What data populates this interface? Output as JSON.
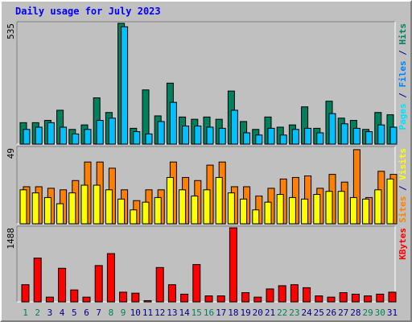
{
  "title": "Daily usage for July 2023",
  "colors": {
    "hits": "#00805c",
    "files": "#00c0ff",
    "pages": "#00e0ff",
    "visits": "#ffff00",
    "sites": "#ff8000",
    "kbytes": "#ff0000",
    "weekend_label": "#00805c",
    "weekday_label": "#000080"
  },
  "chart_data": [
    {
      "type": "bar",
      "panel": "hits-files-pages",
      "ymax_label": "535",
      "ylim": [
        0,
        535
      ],
      "legend": [
        {
          "text": "Pages",
          "color": "#00e0ff"
        },
        {
          "text": " / ",
          "color": "#000080"
        },
        {
          "text": "Files",
          "color": "#0080ff"
        },
        {
          "text": " / ",
          "color": "#000080"
        },
        {
          "text": "Hits",
          "color": "#00805c"
        }
      ],
      "categories": [
        "1",
        "2",
        "3",
        "4",
        "5",
        "6",
        "7",
        "8",
        "9",
        "10",
        "11",
        "12",
        "13",
        "14",
        "15",
        "16",
        "17",
        "18",
        "19",
        "20",
        "21",
        "22",
        "23",
        "24",
        "25",
        "26",
        "27",
        "28",
        "29",
        "30",
        "31"
      ],
      "series": [
        {
          "name": "Hits",
          "color": "#00805c",
          "values": [
            95,
            95,
            105,
            150,
            65,
            85,
            205,
            140,
            535,
            70,
            240,
            125,
            270,
            120,
            110,
            120,
            110,
            235,
            100,
            65,
            120,
            75,
            85,
            165,
            70,
            190,
            115,
            105,
            65,
            140,
            130
          ]
        },
        {
          "name": "Files",
          "color": "#00c0ff",
          "values": [
            65,
            75,
            95,
            75,
            45,
            65,
            105,
            115,
            520,
            55,
            45,
            100,
            185,
            80,
            80,
            75,
            70,
            150,
            50,
            40,
            70,
            40,
            65,
            70,
            50,
            135,
            90,
            70,
            55,
            85,
            75
          ]
        }
      ]
    },
    {
      "type": "bar",
      "panel": "visits-sites",
      "ymax_label": "49",
      "ylim": [
        0,
        49
      ],
      "legend": [
        {
          "text": "Sites",
          "color": "#ff8000"
        },
        {
          "text": " / ",
          "color": "#000080"
        },
        {
          "text": "Visits",
          "color": "#ffff00"
        }
      ],
      "categories": [
        "1",
        "2",
        "3",
        "4",
        "5",
        "6",
        "7",
        "8",
        "9",
        "10",
        "11",
        "12",
        "13",
        "14",
        "15",
        "16",
        "17",
        "18",
        "19",
        "20",
        "21",
        "22",
        "23",
        "24",
        "25",
        "26",
        "27",
        "28",
        "29",
        "30",
        "31"
      ],
      "series": [
        {
          "name": "Visits",
          "color": "#ffff00",
          "values": [
            22,
            20,
            17,
            13,
            20,
            25,
            25,
            22,
            16,
            9,
            14,
            17,
            30,
            22,
            18,
            22,
            30,
            20,
            16,
            9,
            14,
            19,
            17,
            16,
            19,
            21,
            21,
            17,
            16,
            22,
            29
          ]
        },
        {
          "name": "Sites",
          "color": "#ff8000",
          "values": [
            24,
            24,
            23,
            22,
            28,
            40,
            40,
            36,
            22,
            15,
            22,
            22,
            40,
            30,
            28,
            38,
            40,
            24,
            24,
            18,
            23,
            29,
            30,
            31,
            23,
            32,
            27,
            48,
            17,
            34,
            32
          ]
        }
      ]
    },
    {
      "type": "bar",
      "panel": "kbytes",
      "ymax_label": "1488",
      "ylim": [
        0,
        1488
      ],
      "legend": [
        {
          "text": "KBytes",
          "color": "#ff0000"
        }
      ],
      "categories": [
        "1",
        "2",
        "3",
        "4",
        "5",
        "6",
        "7",
        "8",
        "9",
        "10",
        "11",
        "12",
        "13",
        "14",
        "15",
        "16",
        "17",
        "18",
        "19",
        "20",
        "21",
        "22",
        "23",
        "24",
        "25",
        "26",
        "27",
        "28",
        "29",
        "30",
        "31"
      ],
      "series": [
        {
          "name": "KBytes",
          "color": "#ff0000",
          "values": [
            345,
            880,
            95,
            675,
            240,
            95,
            730,
            970,
            195,
            175,
            25,
            690,
            345,
            155,
            750,
            120,
            120,
            1488,
            185,
            95,
            260,
            325,
            345,
            285,
            120,
            95,
            185,
            155,
            120,
            155,
            195
          ]
        }
      ]
    }
  ],
  "days": [
    {
      "label": "1",
      "weekend": true
    },
    {
      "label": "2",
      "weekend": true
    },
    {
      "label": "3",
      "weekend": false
    },
    {
      "label": "4",
      "weekend": false
    },
    {
      "label": "5",
      "weekend": false
    },
    {
      "label": "6",
      "weekend": false
    },
    {
      "label": "7",
      "weekend": false
    },
    {
      "label": "8",
      "weekend": true
    },
    {
      "label": "9",
      "weekend": true
    },
    {
      "label": "10",
      "weekend": false
    },
    {
      "label": "11",
      "weekend": false
    },
    {
      "label": "12",
      "weekend": false
    },
    {
      "label": "13",
      "weekend": false
    },
    {
      "label": "14",
      "weekend": false
    },
    {
      "label": "15",
      "weekend": true
    },
    {
      "label": "16",
      "weekend": true
    },
    {
      "label": "17",
      "weekend": false
    },
    {
      "label": "18",
      "weekend": false
    },
    {
      "label": "19",
      "weekend": false
    },
    {
      "label": "20",
      "weekend": false
    },
    {
      "label": "21",
      "weekend": false
    },
    {
      "label": "22",
      "weekend": true
    },
    {
      "label": "23",
      "weekend": true
    },
    {
      "label": "24",
      "weekend": false
    },
    {
      "label": "25",
      "weekend": false
    },
    {
      "label": "26",
      "weekend": false
    },
    {
      "label": "27",
      "weekend": false
    },
    {
      "label": "28",
      "weekend": false
    },
    {
      "label": "29",
      "weekend": true
    },
    {
      "label": "30",
      "weekend": true
    },
    {
      "label": "31",
      "weekend": false
    }
  ]
}
